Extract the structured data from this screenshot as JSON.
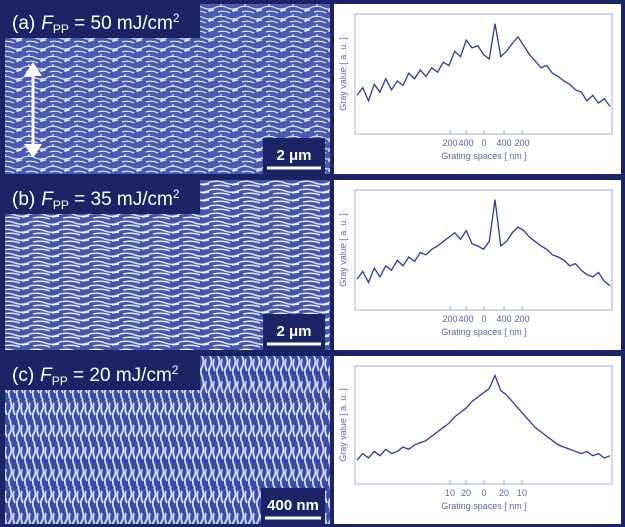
{
  "panels": [
    {
      "label": "(a)",
      "fluence": {
        "symbol": "F",
        "subscript": "PP",
        "text": " = 50 mJ/cm",
        "superscript": "2"
      },
      "scale_bar": "2 μm",
      "plot": {
        "y_label": "Gray value [ a. u. ]",
        "x_label": "Grating spaces [ nm ]",
        "x_ticks": [
          "200",
          "400",
          "0",
          "400",
          "200"
        ],
        "values": [
          35,
          42,
          30,
          45,
          38,
          50,
          40,
          48,
          44,
          55,
          50,
          58,
          52,
          60,
          56,
          65,
          62,
          75,
          70,
          85,
          78,
          80,
          72,
          68,
          100,
          70,
          75,
          82,
          88,
          80,
          72,
          66,
          60,
          62,
          55,
          52,
          48,
          45,
          40,
          38,
          30,
          35,
          28,
          32,
          25
        ]
      }
    },
    {
      "label": "(b)",
      "fluence": {
        "symbol": "F",
        "subscript": "PP",
        "text": " = 35 mJ/cm",
        "superscript": "2"
      },
      "scale_bar": "2 μm",
      "plot": {
        "y_label": "Gray value [ a. u. ]",
        "x_label": "Grating spaces [ nm ]",
        "x_ticks": [
          "200",
          "400",
          "0",
          "400",
          "200"
        ],
        "values": [
          28,
          35,
          25,
          38,
          30,
          40,
          36,
          45,
          40,
          48,
          44,
          52,
          50,
          55,
          58,
          62,
          66,
          70,
          64,
          72,
          60,
          58,
          55,
          62,
          100,
          58,
          62,
          70,
          75,
          72,
          66,
          62,
          58,
          55,
          50,
          48,
          45,
          40,
          42,
          36,
          32,
          30,
          34,
          26,
          22
        ]
      }
    },
    {
      "label": "(c)",
      "fluence": {
        "symbol": "F",
        "subscript": "PP",
        "text": " = 20 mJ/cm",
        "superscript": "2"
      },
      "scale_bar": "400 nm",
      "plot": {
        "y_label": "Gray value [ a. u. ]",
        "x_label": "Grating spaces [ nm ]",
        "x_ticks": [
          "10",
          "20",
          "0",
          "20",
          "10"
        ],
        "values": [
          22,
          28,
          24,
          30,
          26,
          32,
          28,
          30,
          34,
          32,
          36,
          38,
          40,
          44,
          48,
          52,
          56,
          62,
          66,
          70,
          76,
          80,
          84,
          88,
          100,
          86,
          82,
          76,
          70,
          64,
          58,
          52,
          48,
          44,
          40,
          36,
          34,
          32,
          30,
          28,
          30,
          26,
          28,
          24,
          26
        ]
      }
    }
  ]
}
